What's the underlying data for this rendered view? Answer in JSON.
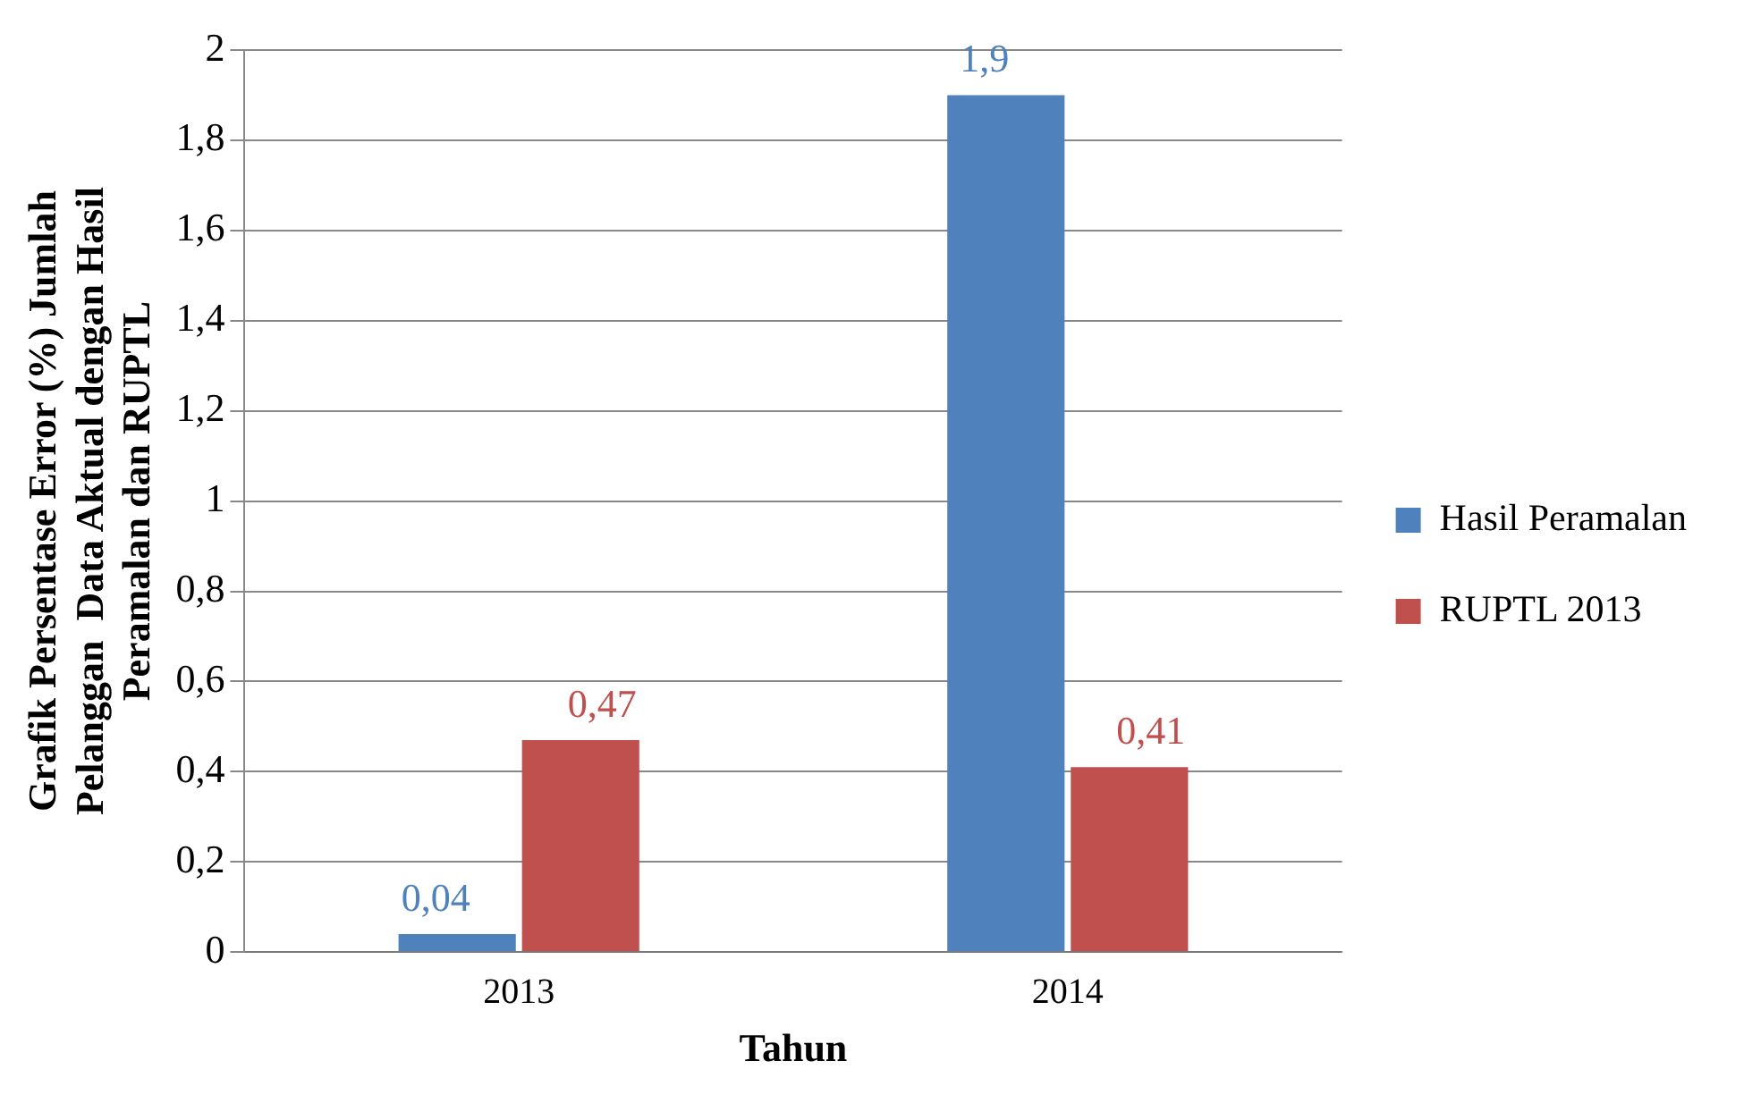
{
  "chart_data": {
    "type": "bar",
    "ylabel": "Grafik Persentase Error (%) Jumlah Pelanggan  Data Aktual dengan Hasil Peramalan dan RUPTL",
    "xlabel": "Tahun",
    "categories": [
      "2013",
      "2014"
    ],
    "series": [
      {
        "name": "Hasil Peramalan",
        "color": "#4f81bd",
        "values": [
          0.04,
          1.9
        ],
        "value_labels": [
          "0,04",
          "1,9"
        ]
      },
      {
        "name": "RUPTL 2013",
        "color": "#c0504d",
        "values": [
          0.47,
          0.41
        ],
        "value_labels": [
          "0,47",
          "0,41"
        ]
      }
    ],
    "ylim": [
      0,
      2
    ],
    "yticks": [
      0,
      {
        "value": 0.2,
        "label": "0,2"
      },
      {
        "value": 0.4,
        "label": "0,4"
      },
      {
        "value": 0.6,
        "label": "0,6"
      },
      {
        "value": 0.8,
        "label": "0,8"
      },
      1,
      {
        "value": 1.2,
        "label": "1,2"
      },
      {
        "value": 1.4,
        "label": "1,4"
      },
      {
        "value": 1.6,
        "label": "1,6"
      },
      {
        "value": 1.8,
        "label": "1,8"
      },
      2
    ],
    "grid": "y",
    "legend": "right"
  }
}
